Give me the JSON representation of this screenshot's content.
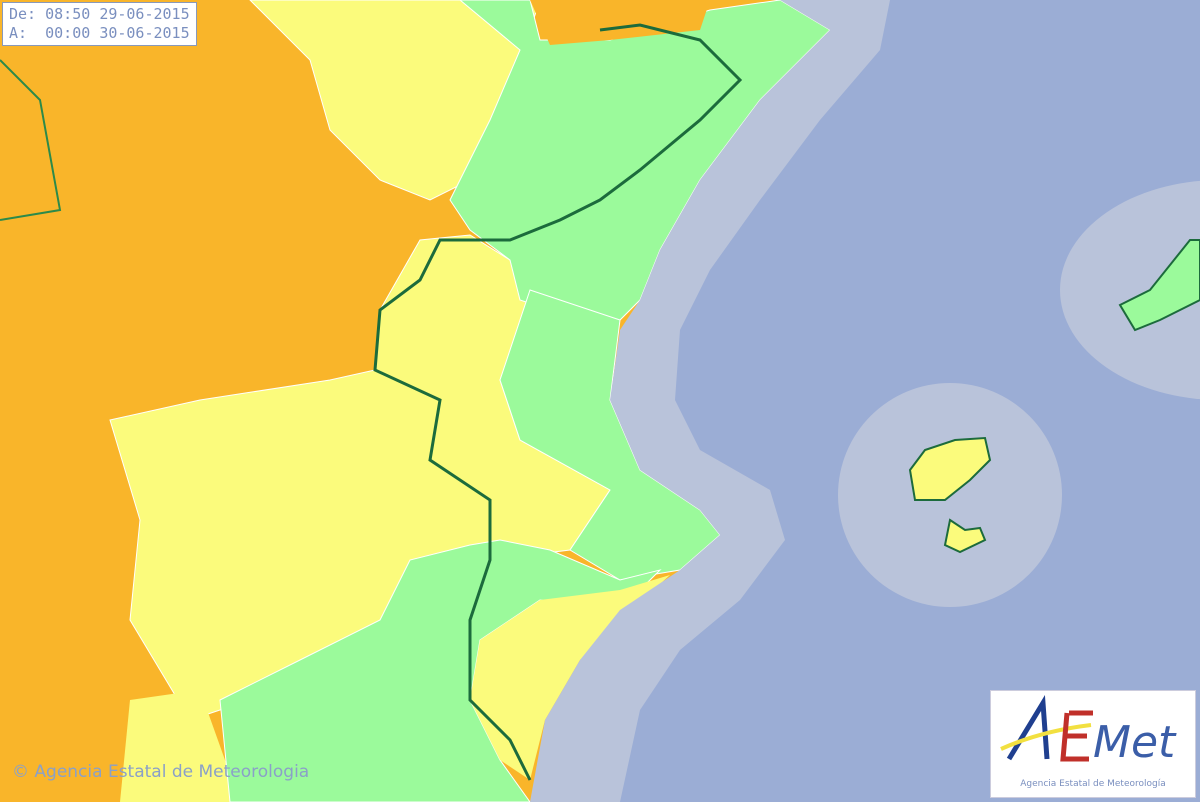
{
  "validity": {
    "from_label": "De:",
    "from_time": "08:50",
    "from_date": "29-06-2015",
    "to_label": "A:",
    "to_time": "00:00",
    "to_date": "30-06-2015"
  },
  "copyright": "© Agencia Estatal de Meteorologia",
  "logo": {
    "text": "AEMet",
    "caption": "Agencia Estatal de Meteorología"
  },
  "legend_colors": {
    "orange": "#f9b52a",
    "yellow": "#fbfb7c",
    "green": "#9bfa9b",
    "sea": "#9badd5",
    "coastal_sea": "#b9c3da",
    "border": "#1c6b3c"
  }
}
